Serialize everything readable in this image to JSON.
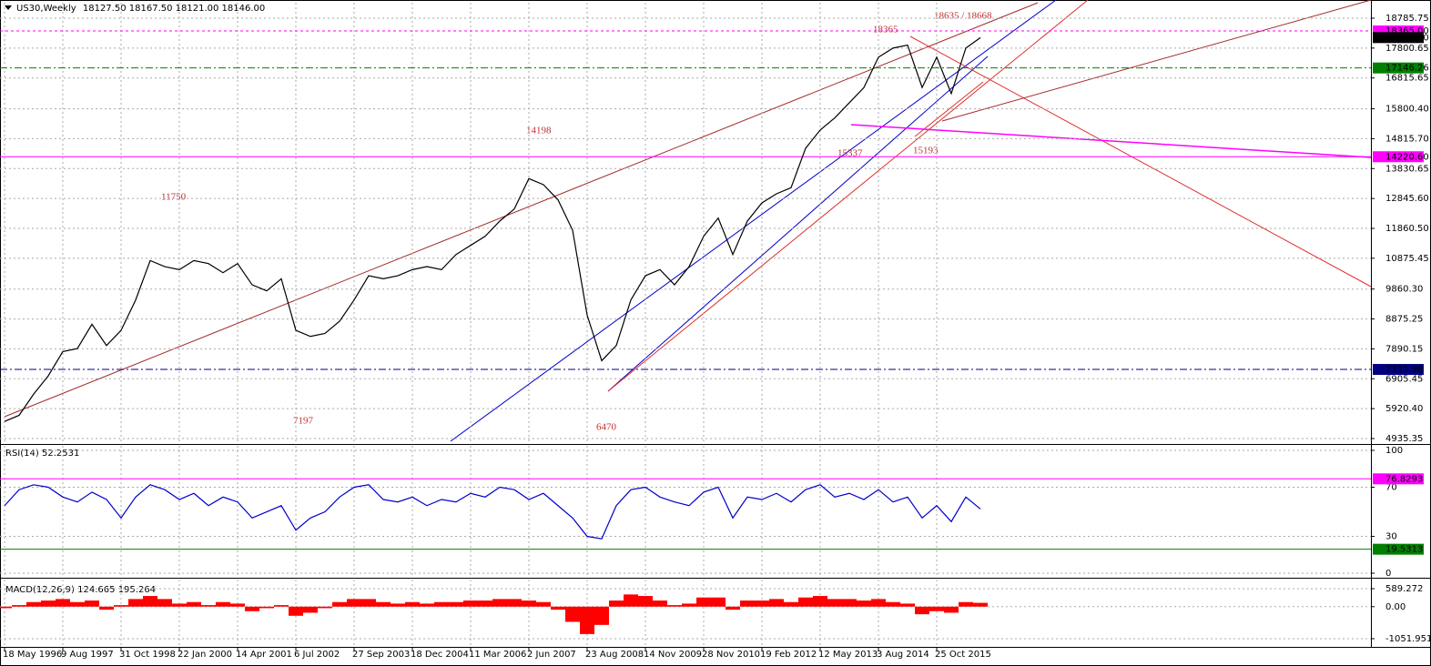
{
  "chart_data": [
    {
      "type": "line",
      "title": "US30,Weekly",
      "subtitle": "18127.50 18167.50 18121.00 18146.00",
      "color": "#000000",
      "categories": [
        "18 May 1996",
        null,
        null,
        null,
        "9 Aug 1997",
        null,
        null,
        null,
        "31 Oct 1998",
        null,
        null,
        null,
        "22 Jan 2000",
        null,
        null,
        null,
        "14 Apr 2001",
        null,
        null,
        null,
        "6 Jul 2002",
        null,
        null,
        null,
        "27 Sep 2003",
        null,
        null,
        null,
        "18 Dec 2004",
        null,
        null,
        null,
        "11 Mar 2006",
        null,
        null,
        null,
        "2 Jun 2007",
        null,
        null,
        null,
        "23 Aug 2008",
        null,
        null,
        null,
        "14 Nov 2009",
        null,
        null,
        null,
        "28 Nov 2010",
        null,
        null,
        null,
        "19 Feb 2012",
        null,
        null,
        null,
        "12 May 2013",
        null,
        null,
        null,
        "3 Aug 2014",
        null,
        null,
        null,
        "25 Oct 2015",
        null,
        null,
        null
      ],
      "values": [
        5500,
        5700,
        6400,
        7000,
        7800,
        7900,
        8700,
        8000,
        8500,
        9500,
        10800,
        10600,
        10500,
        10800,
        10700,
        10400,
        10700,
        10000,
        9800,
        10200,
        8500,
        8300,
        8400,
        8800,
        9500,
        10300,
        10200,
        10300,
        10500,
        10600,
        10500,
        11000,
        11300,
        11600,
        12100,
        12500,
        13500,
        13300,
        12800,
        11800,
        9000,
        7500,
        8000,
        9500,
        10300,
        10500,
        10000,
        10600,
        11600,
        12200,
        11000,
        12100,
        12700,
        13000,
        13200,
        14500,
        15100,
        15500,
        16000,
        16500,
        17500,
        17800,
        17900,
        16500,
        17500,
        16300,
        17800,
        18146
      ],
      "ylim": [
        4755,
        19295
      ],
      "yticks": [
        {
          "value": 18785.75,
          "label": "18785.75"
        },
        {
          "value": 17800.65,
          "label": "17800.65"
        },
        {
          "value": 16815.65,
          "label": "16815.65"
        },
        {
          "value": 15800.4,
          "label": "15800.40"
        },
        {
          "value": 14815.7,
          "label": "14815.70"
        },
        {
          "value": 13830.65,
          "label": "13830.65"
        },
        {
          "value": 12845.6,
          "label": "12845.60"
        },
        {
          "value": 11860.5,
          "label": "11860.50"
        },
        {
          "value": 10875.45,
          "label": "10875.45"
        },
        {
          "value": 9860.3,
          "label": "9860.30"
        },
        {
          "value": 8875.25,
          "label": "8875.25"
        },
        {
          "value": 7890.15,
          "label": "7890.15"
        },
        {
          "value": 6905.45,
          "label": "6905.45"
        },
        {
          "value": 5920.4,
          "label": "5920.40"
        },
        {
          "value": 4935.35,
          "label": "4935.35"
        }
      ],
      "levels": [
        {
          "value": 18365,
          "label": "18365.00",
          "color": "#ff00ff",
          "style": "dash"
        },
        {
          "value": 17146.26,
          "label": "17146.26",
          "color": "#008000",
          "style": "dashdot"
        },
        {
          "value": 14220.6,
          "label": "14220.60",
          "color": "#ff00ff",
          "style": "solid"
        },
        {
          "value": 7211.96,
          "label": "7211.96",
          "color": "#000080",
          "style": "dashdot"
        }
      ],
      "last": {
        "value": 18146,
        "label": "18146.00",
        "color": "#000000"
      },
      "annotations": [
        "11750",
        "14198",
        "7197",
        "6470",
        "18365",
        "18635 / 18668",
        "15337",
        "15193"
      ],
      "grid": true
    },
    {
      "type": "line",
      "title": "RSI(14)",
      "current": 52.2531,
      "color": "#0000cc",
      "values": [
        55,
        68,
        72,
        70,
        62,
        58,
        66,
        60,
        45,
        62,
        72,
        68,
        60,
        65,
        55,
        62,
        58,
        45,
        50,
        55,
        35,
        45,
        50,
        62,
        70,
        72,
        60,
        58,
        62,
        55,
        60,
        58,
        65,
        62,
        70,
        68,
        60,
        65,
        55,
        45,
        30,
        28,
        55,
        68,
        70,
        62,
        58,
        55,
        66,
        70,
        45,
        62,
        60,
        65,
        58,
        68,
        72,
        62,
        65,
        60,
        68,
        58,
        62,
        45,
        55,
        42,
        62,
        52.2531
      ],
      "ylim": [
        -2.2,
        103.7
      ],
      "yticks": [
        100,
        70,
        30,
        0
      ],
      "levels": [
        {
          "value": 76.8293,
          "color": "#ff00ff",
          "style": "solid"
        },
        {
          "value": 19.5313,
          "color": "#008000",
          "style": "solid"
        }
      ],
      "grid": true
    },
    {
      "type": "bar",
      "title": "MACD(12,26,9)",
      "current": [
        124.665,
        195.264
      ],
      "color": "#ff0000",
      "values": [
        -50,
        50,
        150,
        200,
        250,
        150,
        200,
        -100,
        50,
        250,
        350,
        250,
        100,
        150,
        50,
        150,
        100,
        -150,
        -50,
        50,
        -300,
        -200,
        -50,
        150,
        250,
        250,
        150,
        100,
        150,
        100,
        150,
        150,
        200,
        200,
        250,
        250,
        200,
        150,
        -100,
        -500,
        -900,
        -600,
        200,
        400,
        350,
        200,
        50,
        100,
        300,
        300,
        -100,
        200,
        200,
        250,
        150,
        300,
        350,
        250,
        250,
        200,
        250,
        150,
        100,
        -250,
        -150,
        -200,
        150,
        124.665
      ],
      "ylim": [
        -1292,
        889
      ],
      "yticks": [
        589.272,
        {
          "value": 0,
          "label": "0.00"
        },
        -1051.951
      ],
      "grid": true
    }
  ]
}
